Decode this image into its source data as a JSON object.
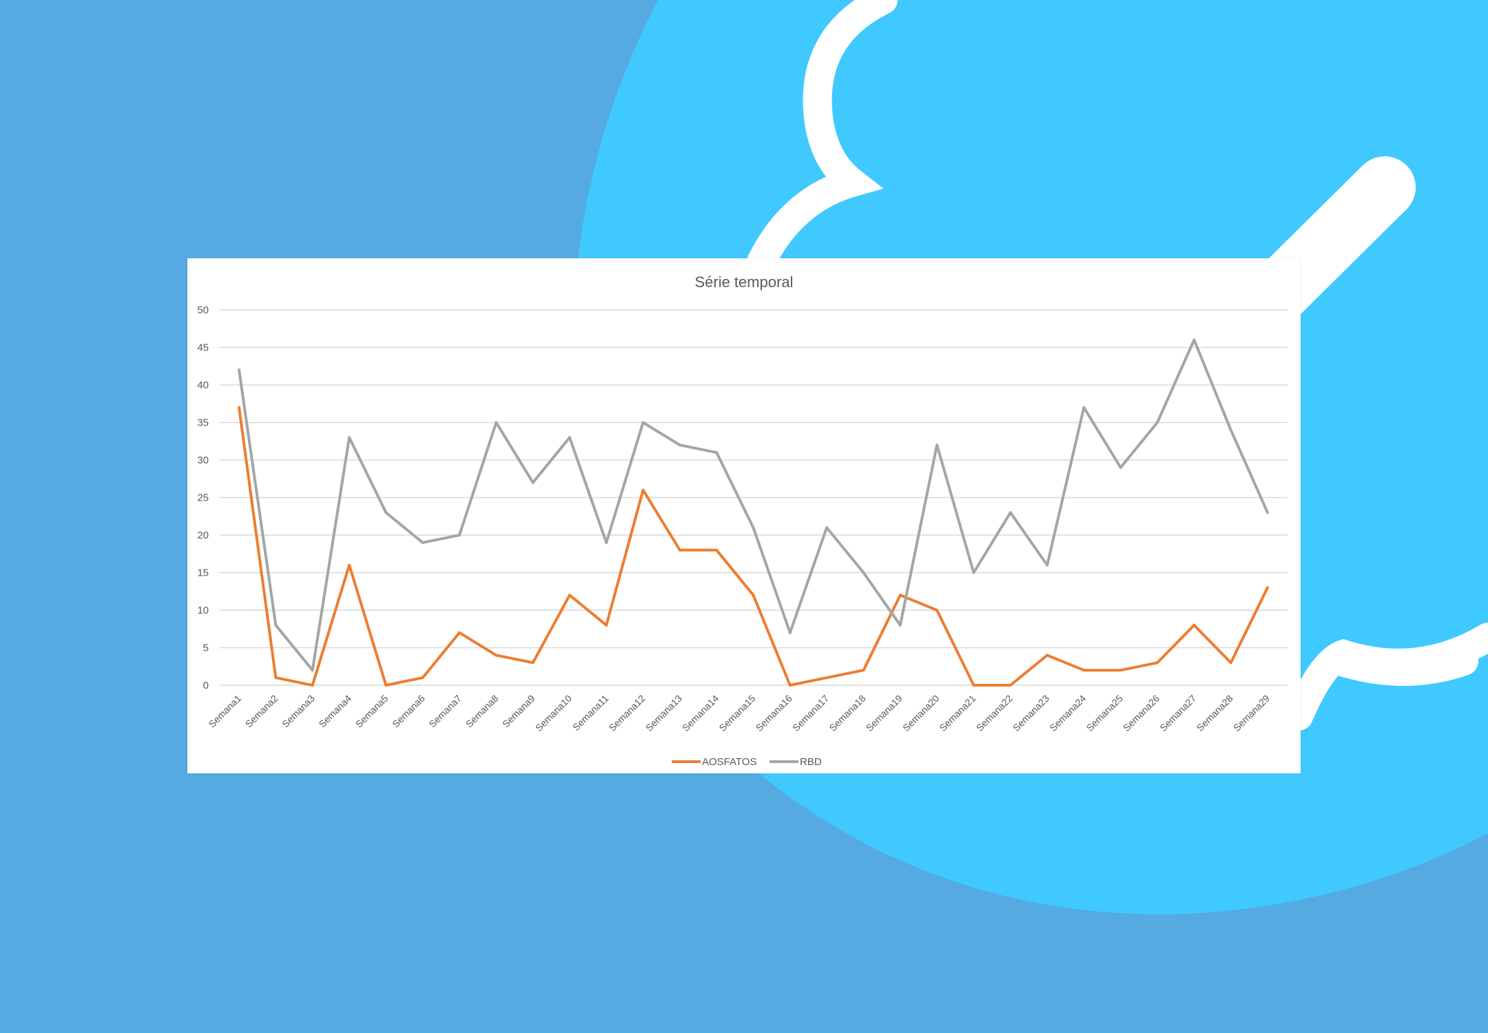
{
  "colors": {
    "background": "#54aae1",
    "shape_light_blue": "#40c9ff",
    "shape_white": "#ffffff",
    "card": "#ffffff",
    "grid": "#d9d9d9",
    "text": "#595959"
  },
  "chart_data": {
    "type": "line",
    "title": "Série temporal",
    "xlabel": "",
    "ylabel": "",
    "ylim": [
      0,
      50
    ],
    "yticks": [
      0,
      5,
      10,
      15,
      20,
      25,
      30,
      35,
      40,
      45,
      50
    ],
    "grid": true,
    "legend_position": "bottom",
    "categories": [
      "Semana1",
      "Semana2",
      "Semana3",
      "Semana4",
      "Semana5",
      "Semana6",
      "Semana7",
      "Semana8",
      "Semana9",
      "Semana10",
      "Semana11",
      "Semana12",
      "Semana13",
      "Semana14",
      "Semana15",
      "Semana16",
      "Semana17",
      "Semana18",
      "Semana19",
      "Semana20",
      "Semana21",
      "Semana22",
      "Semana23",
      "Semana24",
      "Semana25",
      "Semana26",
      "Semana27",
      "Semana28",
      "Semana29"
    ],
    "series": [
      {
        "name": "AOSFATOS",
        "color": "#ed7d31",
        "values": [
          37,
          1,
          0,
          16,
          0,
          1,
          7,
          4,
          3,
          12,
          8,
          26,
          18,
          18,
          12,
          0,
          1,
          2,
          12,
          10,
          0,
          0,
          4,
          2,
          2,
          3,
          8,
          3,
          13
        ]
      },
      {
        "name": "RBD",
        "color": "#a5a5a5",
        "values": [
          42,
          8,
          2,
          33,
          23,
          19,
          20,
          35,
          27,
          33,
          19,
          35,
          32,
          31,
          21,
          7,
          21,
          15,
          8,
          32,
          15,
          23,
          16,
          37,
          29,
          35,
          46,
          34,
          23
        ]
      }
    ]
  }
}
